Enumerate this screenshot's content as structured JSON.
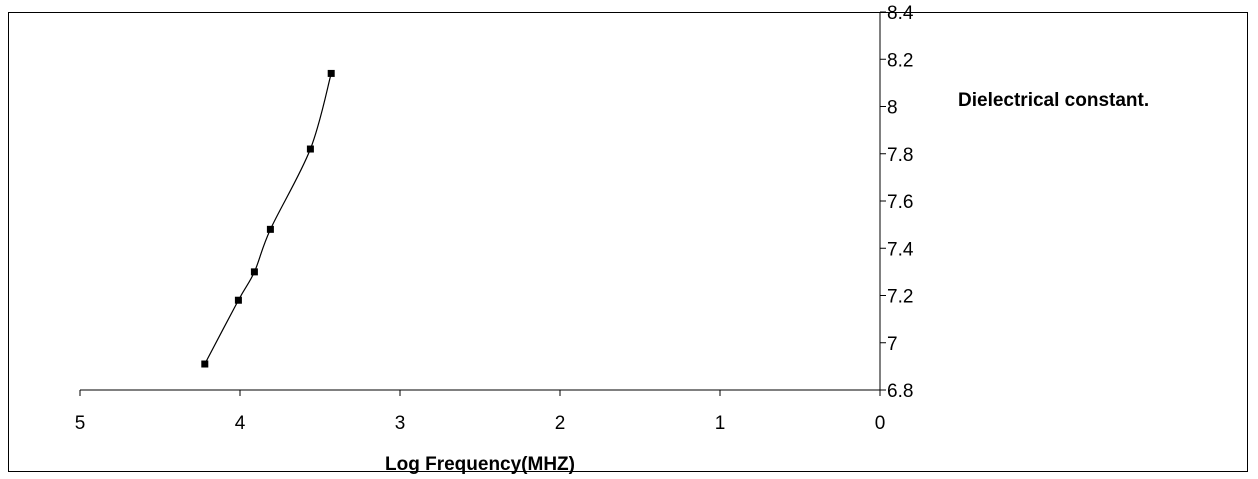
{
  "chart_data": {
    "type": "line",
    "title": "",
    "xlabel": "Log Frequency(MHZ)",
    "ylabel": "Dielectrical constant.",
    "x_reversed": true,
    "y_axis_side": "right",
    "xlim": [
      0,
      5
    ],
    "ylim": [
      6.8,
      8.4
    ],
    "x_ticks": [
      "5",
      "4",
      "3",
      "2",
      "1",
      "0"
    ],
    "y_ticks": [
      "8.4",
      "8.2",
      "8",
      "7.8",
      "7.6",
      "7.4",
      "7.2",
      "7",
      "6.8"
    ],
    "grid": false,
    "legend": false,
    "series": [
      {
        "color": "#000000",
        "marker": "square",
        "smooth": true,
        "x": [
          4.22,
          4.01,
          3.91,
          3.81,
          3.56,
          3.43
        ],
        "y": [
          6.91,
          7.18,
          7.3,
          7.48,
          7.82,
          8.14
        ]
      }
    ]
  }
}
